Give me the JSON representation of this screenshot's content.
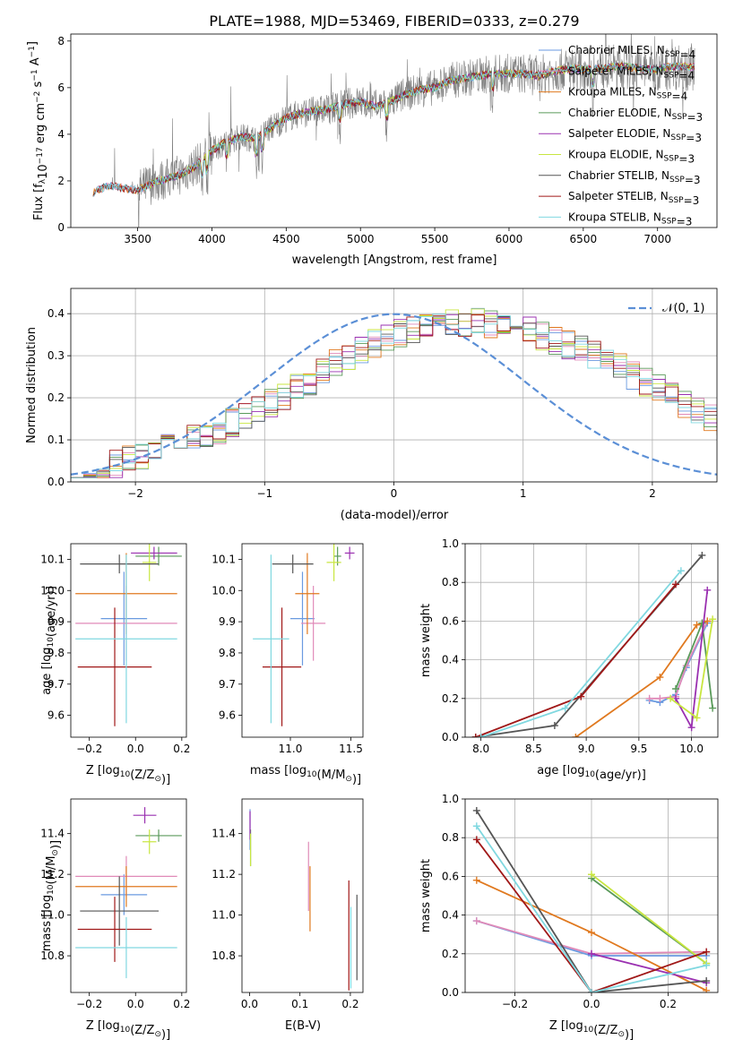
{
  "figure_title": "PLATE=1988, MJD=53469, FIBERID=0333, z=0.279",
  "colors": {
    "chabrier_miles": "#6a9ae0",
    "salpeter_miles": "#e08ab8",
    "kroupa_miles": "#e0791f",
    "chabrier_elodie": "#5a9a5a",
    "salpeter_elodie": "#9a30b0",
    "kroupa_elodie": "#c8e640",
    "chabrier_stelib": "#555555",
    "salpeter_stelib": "#a01818",
    "kroupa_stelib": "#80d8e0",
    "gauss": "#5b8fd6",
    "gray_spectrum": "#808080"
  },
  "chart_data": [
    {
      "id": "spectrum",
      "type": "line",
      "title": "PLATE=1988, MJD=53469, FIBERID=0333, z=0.279",
      "xlabel": "wavelength [Angstrom, rest frame]",
      "ylabel_parts": [
        "Flux [f",
        "λ",
        "10",
        "−17",
        " erg cm",
        "−2",
        " s",
        "−1",
        " A",
        "−1",
        "]"
      ],
      "xlim": [
        3050,
        7400
      ],
      "ylim": [
        0,
        8.3
      ],
      "xticks": [
        3500,
        4000,
        4500,
        5000,
        5500,
        6000,
        6500,
        7000
      ],
      "yticks": [
        0,
        2,
        4,
        6,
        8
      ],
      "legend_position": "upper-right",
      "legend": [
        {
          "base": "Chabrier MILES, N",
          "sub": "SSP",
          "tail": "=4",
          "color_key": "chabrier_miles"
        },
        {
          "base": "Salpeter MILES, N",
          "sub": "SSP",
          "tail": "=4",
          "color_key": "salpeter_miles"
        },
        {
          "base": "Kroupa MILES, N",
          "sub": "SSP",
          "tail": "=4",
          "color_key": "kroupa_miles"
        },
        {
          "base": "Chabrier ELODIE, N",
          "sub": "SSP",
          "tail": "=3",
          "color_key": "chabrier_elodie"
        },
        {
          "base": "Salpeter ELODIE, N",
          "sub": "SSP",
          "tail": "=3",
          "color_key": "salpeter_elodie"
        },
        {
          "base": "Kroupa ELODIE, N",
          "sub": "SSP",
          "tail": "=3",
          "color_key": "kroupa_elodie"
        },
        {
          "base": "Chabrier STELIB, N",
          "sub": "SSP",
          "tail": "=3",
          "color_key": "chabrier_stelib"
        },
        {
          "base": "Salpeter STELIB, N",
          "sub": "SSP",
          "tail": "=3",
          "color_key": "salpeter_stelib"
        },
        {
          "base": "Kroupa STELIB, N",
          "sub": "SSP",
          "tail": "=3",
          "color_key": "kroupa_stelib"
        }
      ],
      "continuum": {
        "x": [
          3200,
          3300,
          3400,
          3500,
          3600,
          3700,
          3800,
          3900,
          4000,
          4100,
          4200,
          4300,
          4400,
          4500,
          4600,
          4700,
          4800,
          4900,
          5000,
          5100,
          5200,
          5300,
          5400,
          5500,
          5600,
          5700,
          5800,
          5900,
          6000,
          6100,
          6200,
          6300,
          6400,
          6500,
          6600,
          6700,
          6800,
          6900,
          7000,
          7100,
          7200
        ],
        "y": [
          1.5,
          1.8,
          1.7,
          1.6,
          1.9,
          2.1,
          2.3,
          2.7,
          3.3,
          3.7,
          3.9,
          3.8,
          4.3,
          4.7,
          4.9,
          5.0,
          5.1,
          5.3,
          5.4,
          5.2,
          5.4,
          5.7,
          5.9,
          6.0,
          6.3,
          6.4,
          6.5,
          6.6,
          6.6,
          6.6,
          6.5,
          6.7,
          6.8,
          6.8,
          6.8,
          6.9,
          6.9,
          6.8,
          6.8,
          6.9,
          6.9
        ]
      }
    },
    {
      "id": "residuals",
      "type": "histogram",
      "xlabel": "(data-model)/error",
      "ylabel": "Normed distribution",
      "xlim": [
        -2.5,
        2.5
      ],
      "ylim": [
        0,
        0.46
      ],
      "xticks": [
        -2,
        -1,
        0,
        1,
        2
      ],
      "yticks": [
        0.0,
        0.1,
        0.2,
        0.3,
        0.4
      ],
      "grid": true,
      "legend_position": "upper-right",
      "legend_label": "𝒩(0, 1)",
      "bin_width": 0.1,
      "baseline": [
        0.025,
        0.028,
        0.036,
        0.044,
        0.053,
        0.061,
        0.07,
        0.079,
        0.089,
        0.1,
        0.112,
        0.125,
        0.14,
        0.155,
        0.171,
        0.188,
        0.205,
        0.223,
        0.242,
        0.26,
        0.28,
        0.296,
        0.313,
        0.33,
        0.342,
        0.355,
        0.365,
        0.373,
        0.379,
        0.382,
        0.38,
        0.379,
        0.376,
        0.371,
        0.365,
        0.357,
        0.347,
        0.336,
        0.325,
        0.313,
        0.3,
        0.285,
        0.27,
        0.254,
        0.238,
        0.221,
        0.204,
        0.187,
        0.171,
        0.155,
        0.14
      ],
      "baseline_right": [
        0.126,
        0.112,
        0.1,
        0.089,
        0.078,
        0.068,
        0.06,
        0.052,
        0.045,
        0.039,
        0.034,
        0.029,
        0.026,
        0.023
      ],
      "series_keys": [
        "chabrier_miles",
        "salpeter_miles",
        "kroupa_miles",
        "chabrier_elodie",
        "salpeter_elodie",
        "kroupa_elodie",
        "chabrier_stelib",
        "salpeter_stelib",
        "kroupa_stelib"
      ]
    },
    {
      "id": "age_vs_z",
      "type": "errorbar",
      "xlabel_parts": [
        "Z [log",
        "10",
        "(Z/Z",
        "⊙",
        ")]"
      ],
      "ylabel_parts": [
        "age  [log",
        "10",
        "(age/yr)]"
      ],
      "xlim": [
        -0.28,
        0.22
      ],
      "ylim": [
        9.53,
        10.15
      ],
      "xticks": [
        -0.2,
        0.0,
        0.2
      ],
      "yticks": [
        9.6,
        9.7,
        9.8,
        9.9,
        10.0,
        10.1
      ],
      "points": [
        {
          "color_key": "chabrier_miles",
          "x": -0.05,
          "xerr": 0.1,
          "y": 9.91,
          "yerr": 0.15
        },
        {
          "color_key": "salpeter_miles",
          "x": -0.04,
          "xerr": 0.22,
          "y": 9.895,
          "yerr": 0.12
        },
        {
          "color_key": "kroupa_miles",
          "x": -0.04,
          "xerr": 0.22,
          "y": 9.99,
          "yerr": 0.13
        },
        {
          "color_key": "chabrier_elodie",
          "x": 0.1,
          "xerr": 0.1,
          "y": 10.11,
          "yerr": 0.03
        },
        {
          "color_key": "salpeter_elodie",
          "x": 0.08,
          "xerr": 0.1,
          "y": 10.12,
          "yerr": 0.02
        },
        {
          "color_key": "kroupa_elodie",
          "x": 0.06,
          "xerr": 0.03,
          "y": 10.09,
          "yerr": 0.06
        },
        {
          "color_key": "chabrier_stelib",
          "x": -0.07,
          "xerr": 0.17,
          "y": 10.085,
          "yerr": 0.03
        },
        {
          "color_key": "salpeter_stelib",
          "x": -0.09,
          "xerr": 0.16,
          "y": 9.755,
          "yerr": 0.19
        },
        {
          "color_key": "kroupa_stelib",
          "x": -0.04,
          "xerr": 0.22,
          "y": 9.845,
          "yerr": 0.27
        }
      ]
    },
    {
      "id": "age_vs_mass",
      "type": "errorbar",
      "xlabel_parts": [
        "mass [log",
        "10",
        "(M/M",
        "⊙",
        ")]"
      ],
      "ylabel": "",
      "xlim": [
        10.6,
        11.6
      ],
      "ylim": [
        9.53,
        10.15
      ],
      "xticks": [
        11.0,
        11.5
      ],
      "yticks": [
        9.6,
        9.7,
        9.8,
        9.9,
        10.0,
        10.1
      ],
      "points": [
        {
          "color_key": "chabrier_miles",
          "x": 11.1,
          "xerr": 0.1,
          "y": 9.91,
          "yerr": 0.15
        },
        {
          "color_key": "salpeter_miles",
          "x": 11.19,
          "xerr": 0.1,
          "y": 9.895,
          "yerr": 0.12
        },
        {
          "color_key": "kroupa_miles",
          "x": 11.14,
          "xerr": 0.1,
          "y": 9.99,
          "yerr": 0.13
        },
        {
          "color_key": "chabrier_elodie",
          "x": 11.39,
          "xerr": 0.03,
          "y": 10.11,
          "yerr": 0.03
        },
        {
          "color_key": "salpeter_elodie",
          "x": 11.49,
          "xerr": 0.04,
          "y": 10.12,
          "yerr": 0.02
        },
        {
          "color_key": "kroupa_elodie",
          "x": 11.36,
          "xerr": 0.06,
          "y": 10.09,
          "yerr": 0.06
        },
        {
          "color_key": "chabrier_stelib",
          "x": 11.02,
          "xerr": 0.17,
          "y": 10.085,
          "yerr": 0.03
        },
        {
          "color_key": "salpeter_stelib",
          "x": 10.93,
          "xerr": 0.16,
          "y": 9.755,
          "yerr": 0.19
        },
        {
          "color_key": "kroupa_stelib",
          "x": 10.84,
          "xerr": 0.15,
          "y": 9.845,
          "yerr": 0.27
        }
      ]
    },
    {
      "id": "weight_vs_age",
      "type": "line",
      "xlabel_parts": [
        "age  [log",
        "10",
        "(age/yr)]"
      ],
      "ylabel": "mass weight",
      "xlim": [
        7.85,
        10.25
      ],
      "ylim": [
        0,
        1.0
      ],
      "xticks": [
        8.0,
        8.5,
        9.0,
        9.5,
        10.0
      ],
      "yticks": [
        0.0,
        0.2,
        0.4,
        0.6,
        0.8,
        1.0
      ],
      "grid": true,
      "series": [
        {
          "color_key": "chabrier_miles",
          "x": [
            9.6,
            9.7,
            9.85,
            9.95,
            10.15
          ],
          "y": [
            0.19,
            0.18,
            0.22,
            0.36,
            0.59
          ]
        },
        {
          "color_key": "salpeter_miles",
          "x": [
            9.6,
            9.7,
            9.85,
            9.95,
            10.15
          ],
          "y": [
            0.2,
            0.2,
            0.21,
            0.37,
            0.6
          ]
        },
        {
          "color_key": "kroupa_miles",
          "x": [
            8.9,
            9.7,
            10.05,
            10.15
          ],
          "y": [
            0.0,
            0.31,
            0.58,
            0.6
          ]
        },
        {
          "color_key": "chabrier_elodie",
          "x": [
            9.85,
            10.1,
            10.2
          ],
          "y": [
            0.25,
            0.59,
            0.15
          ]
        },
        {
          "color_key": "salpeter_elodie",
          "x": [
            9.85,
            10.0,
            10.15
          ],
          "y": [
            0.2,
            0.05,
            0.76
          ]
        },
        {
          "color_key": "kroupa_elodie",
          "x": [
            9.8,
            10.05,
            10.2
          ],
          "y": [
            0.2,
            0.1,
            0.61
          ]
        },
        {
          "color_key": "chabrier_stelib",
          "x": [
            7.95,
            8.7,
            10.1
          ],
          "y": [
            0.0,
            0.06,
            0.94
          ]
        },
        {
          "color_key": "salpeter_stelib",
          "x": [
            7.95,
            8.95,
            9.85
          ],
          "y": [
            0.0,
            0.21,
            0.79
          ]
        },
        {
          "color_key": "kroupa_stelib",
          "x": [
            8.0,
            8.8,
            9.9
          ],
          "y": [
            0.0,
            0.15,
            0.86
          ]
        }
      ]
    },
    {
      "id": "mass_vs_z",
      "type": "errorbar",
      "xlabel_parts": [
        "Z [log",
        "10",
        "(Z/Z",
        "⊙",
        ")]"
      ],
      "ylabel_parts": [
        "mass [log",
        "10",
        "(M/M",
        "⊙",
        ")]"
      ],
      "xlim": [
        -0.28,
        0.22
      ],
      "ylim": [
        10.62,
        11.57
      ],
      "xticks": [
        -0.2,
        0.0,
        0.2
      ],
      "yticks": [
        10.8,
        11.0,
        11.2,
        11.4
      ],
      "points": [
        {
          "color_key": "chabrier_miles",
          "x": -0.05,
          "xerr": 0.1,
          "y": 11.1,
          "yerr": 0.1
        },
        {
          "color_key": "salpeter_miles",
          "x": -0.04,
          "xerr": 0.22,
          "y": 11.19,
          "yerr": 0.1
        },
        {
          "color_key": "kroupa_miles",
          "x": -0.04,
          "xerr": 0.22,
          "y": 11.14,
          "yerr": 0.1
        },
        {
          "color_key": "chabrier_elodie",
          "x": 0.1,
          "xerr": 0.1,
          "y": 11.39,
          "yerr": 0.03
        },
        {
          "color_key": "salpeter_elodie",
          "x": 0.04,
          "xerr": 0.05,
          "y": 11.49,
          "yerr": 0.04
        },
        {
          "color_key": "kroupa_elodie",
          "x": 0.06,
          "xerr": 0.03,
          "y": 11.36,
          "yerr": 0.06
        },
        {
          "color_key": "chabrier_stelib",
          "x": -0.07,
          "xerr": 0.17,
          "y": 11.02,
          "yerr": 0.17
        },
        {
          "color_key": "salpeter_stelib",
          "x": -0.09,
          "xerr": 0.16,
          "y": 10.93,
          "yerr": 0.16
        },
        {
          "color_key": "kroupa_stelib",
          "x": -0.04,
          "xerr": 0.22,
          "y": 10.84,
          "yerr": 0.15
        }
      ]
    },
    {
      "id": "mass_vs_ebv",
      "type": "errorbar",
      "xlabel": "E(B-V)",
      "ylabel": "",
      "xlim": [
        -0.015,
        0.225
      ],
      "ylim": [
        10.62,
        11.57
      ],
      "xticks": [
        0.0,
        0.1,
        0.2
      ],
      "yticks": [
        10.8,
        11.0,
        11.2,
        11.4
      ],
      "points": [
        {
          "color_key": "chabrier_miles",
          "x": 0.001,
          "xerr": 0,
          "y": 11.42,
          "yerr": 0.1
        },
        {
          "color_key": "salpeter_miles",
          "x": 0.117,
          "xerr": 0,
          "y": 11.19,
          "yerr": 0.17
        },
        {
          "color_key": "kroupa_miles",
          "x": 0.12,
          "xerr": 0,
          "y": 11.08,
          "yerr": 0.16
        },
        {
          "color_key": "chabrier_elodie",
          "x": 0.002,
          "xerr": 0,
          "y": 11.33,
          "yerr": 0.09
        },
        {
          "color_key": "salpeter_elodie",
          "x": 0.001,
          "xerr": 0,
          "y": 11.44,
          "yerr": 0.07
        },
        {
          "color_key": "kroupa_elodie",
          "x": 0.002,
          "xerr": 0,
          "y": 11.32,
          "yerr": 0.08
        },
        {
          "color_key": "chabrier_stelib",
          "x": 0.213,
          "xerr": 0,
          "y": 10.89,
          "yerr": 0.21
        },
        {
          "color_key": "salpeter_stelib",
          "x": 0.197,
          "xerr": 0,
          "y": 10.9,
          "yerr": 0.27
        },
        {
          "color_key": "kroupa_stelib",
          "x": 0.201,
          "xerr": 0,
          "y": 10.84,
          "yerr": 0.2
        }
      ]
    },
    {
      "id": "weight_vs_z",
      "type": "line",
      "xlabel_parts": [
        "Z [log",
        "10",
        "(Z/Z",
        "⊙",
        ")]"
      ],
      "ylabel": "mass weight",
      "xlim": [
        -0.33,
        0.33
      ],
      "ylim": [
        0,
        1.0
      ],
      "xticks": [
        -0.2,
        0.0,
        0.2
      ],
      "yticks": [
        0.0,
        0.2,
        0.4,
        0.6,
        0.8,
        1.0
      ],
      "grid": true,
      "series": [
        {
          "color_key": "chabrier_miles",
          "x": [
            -0.3,
            0.0,
            0.3
          ],
          "y": [
            0.37,
            0.19,
            0.19
          ]
        },
        {
          "color_key": "salpeter_miles",
          "x": [
            -0.3,
            0.0,
            0.3
          ],
          "y": [
            0.37,
            0.2,
            0.21
          ]
        },
        {
          "color_key": "kroupa_miles",
          "x": [
            -0.3,
            0.0,
            0.3
          ],
          "y": [
            0.58,
            0.31,
            0.01
          ]
        },
        {
          "color_key": "chabrier_elodie",
          "x": [
            0.0,
            0.3
          ],
          "y": [
            0.59,
            0.15
          ]
        },
        {
          "color_key": "salpeter_elodie",
          "x": [
            0.0,
            0.3
          ],
          "y": [
            0.2,
            0.05
          ]
        },
        {
          "color_key": "kroupa_elodie",
          "x": [
            0.0,
            0.3
          ],
          "y": [
            0.61,
            0.15
          ]
        },
        {
          "color_key": "chabrier_stelib",
          "x": [
            -0.3,
            0.0,
            0.3
          ],
          "y": [
            0.94,
            0.0,
            0.06
          ]
        },
        {
          "color_key": "salpeter_stelib",
          "x": [
            -0.3,
            0.0,
            0.3
          ],
          "y": [
            0.79,
            0.0,
            0.21
          ]
        },
        {
          "color_key": "kroupa_stelib",
          "x": [
            -0.3,
            0.0,
            0.3
          ],
          "y": [
            0.86,
            0.0,
            0.14
          ]
        }
      ]
    }
  ]
}
